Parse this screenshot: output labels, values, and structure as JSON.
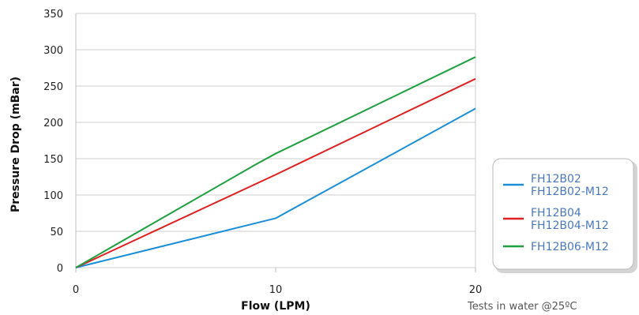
{
  "chart_data": {
    "type": "line",
    "xlabel": "Flow (LPM)",
    "ylabel": "Pressure Drop (mBar)",
    "xlim": [
      0,
      20
    ],
    "ylim": [
      0,
      350
    ],
    "x_ticks": [
      0,
      10,
      20
    ],
    "y_ticks": [
      0,
      50,
      100,
      150,
      200,
      250,
      300,
      350
    ],
    "grid": "horizontal",
    "legend_position": "right",
    "note": "Tests in water @25ºC",
    "series": [
      {
        "name": [
          "FH12B02",
          "FH12B02-M12"
        ],
        "color": "#1a8fd8",
        "x": [
          0,
          10,
          20
        ],
        "y": [
          0,
          68,
          219
        ]
      },
      {
        "name": [
          "FH12B04",
          "FH12B04-M12"
        ],
        "color": "#e02020",
        "x": [
          0,
          10,
          20
        ],
        "y": [
          0,
          128,
          260
        ]
      },
      {
        "name": [
          "FH12B06-M12"
        ],
        "color": "#1fa040",
        "x": [
          0,
          9,
          10,
          20
        ],
        "y": [
          0,
          142,
          157,
          290
        ]
      }
    ]
  }
}
